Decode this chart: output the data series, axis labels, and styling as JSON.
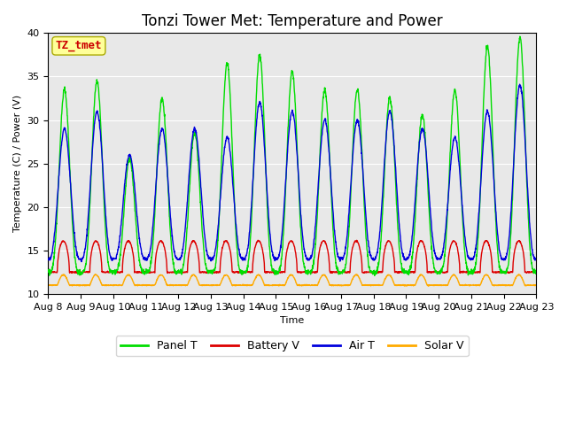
{
  "title": "Tonzi Tower Met: Temperature and Power",
  "xlabel": "Time",
  "ylabel": "Temperature (C) / Power (V)",
  "ylim": [
    10,
    40
  ],
  "yticks": [
    10,
    15,
    20,
    25,
    30,
    35,
    40
  ],
  "x_labels": [
    "Aug 8",
    "Aug 9",
    "Aug 10",
    "Aug 11",
    "Aug 12",
    "Aug 13",
    "Aug 14",
    "Aug 15",
    "Aug 16",
    "Aug 17",
    "Aug 18",
    "Aug 19",
    "Aug 20",
    "Aug 21",
    "Aug 22",
    "Aug 23"
  ],
  "n_days": 15,
  "colors": {
    "Panel T": "#00dd00",
    "Battery V": "#dd0000",
    "Air T": "#0000dd",
    "Solar V": "#ffaa00"
  },
  "annotation_text": "TZ_tmet",
  "annotation_color": "#cc0000",
  "annotation_bg": "#ffff99",
  "annotation_edge": "#aaaa00",
  "bg_color": "#e8e8e8",
  "title_fontsize": 12,
  "axis_fontsize": 8,
  "legend_fontsize": 9,
  "panel_base": 12.5,
  "panel_amps": [
    21,
    22,
    13,
    20,
    16,
    24,
    25,
    23,
    21,
    21,
    20,
    18,
    21,
    26,
    27
  ],
  "air_base": 14.0,
  "air_amps": [
    15,
    17,
    12,
    15,
    15,
    14,
    18,
    17,
    16,
    16,
    17,
    15,
    14,
    17,
    20
  ],
  "batt_base": 12.5,
  "batt_spike": 3.6,
  "solar_base": 11.0,
  "solar_spike": 1.2
}
